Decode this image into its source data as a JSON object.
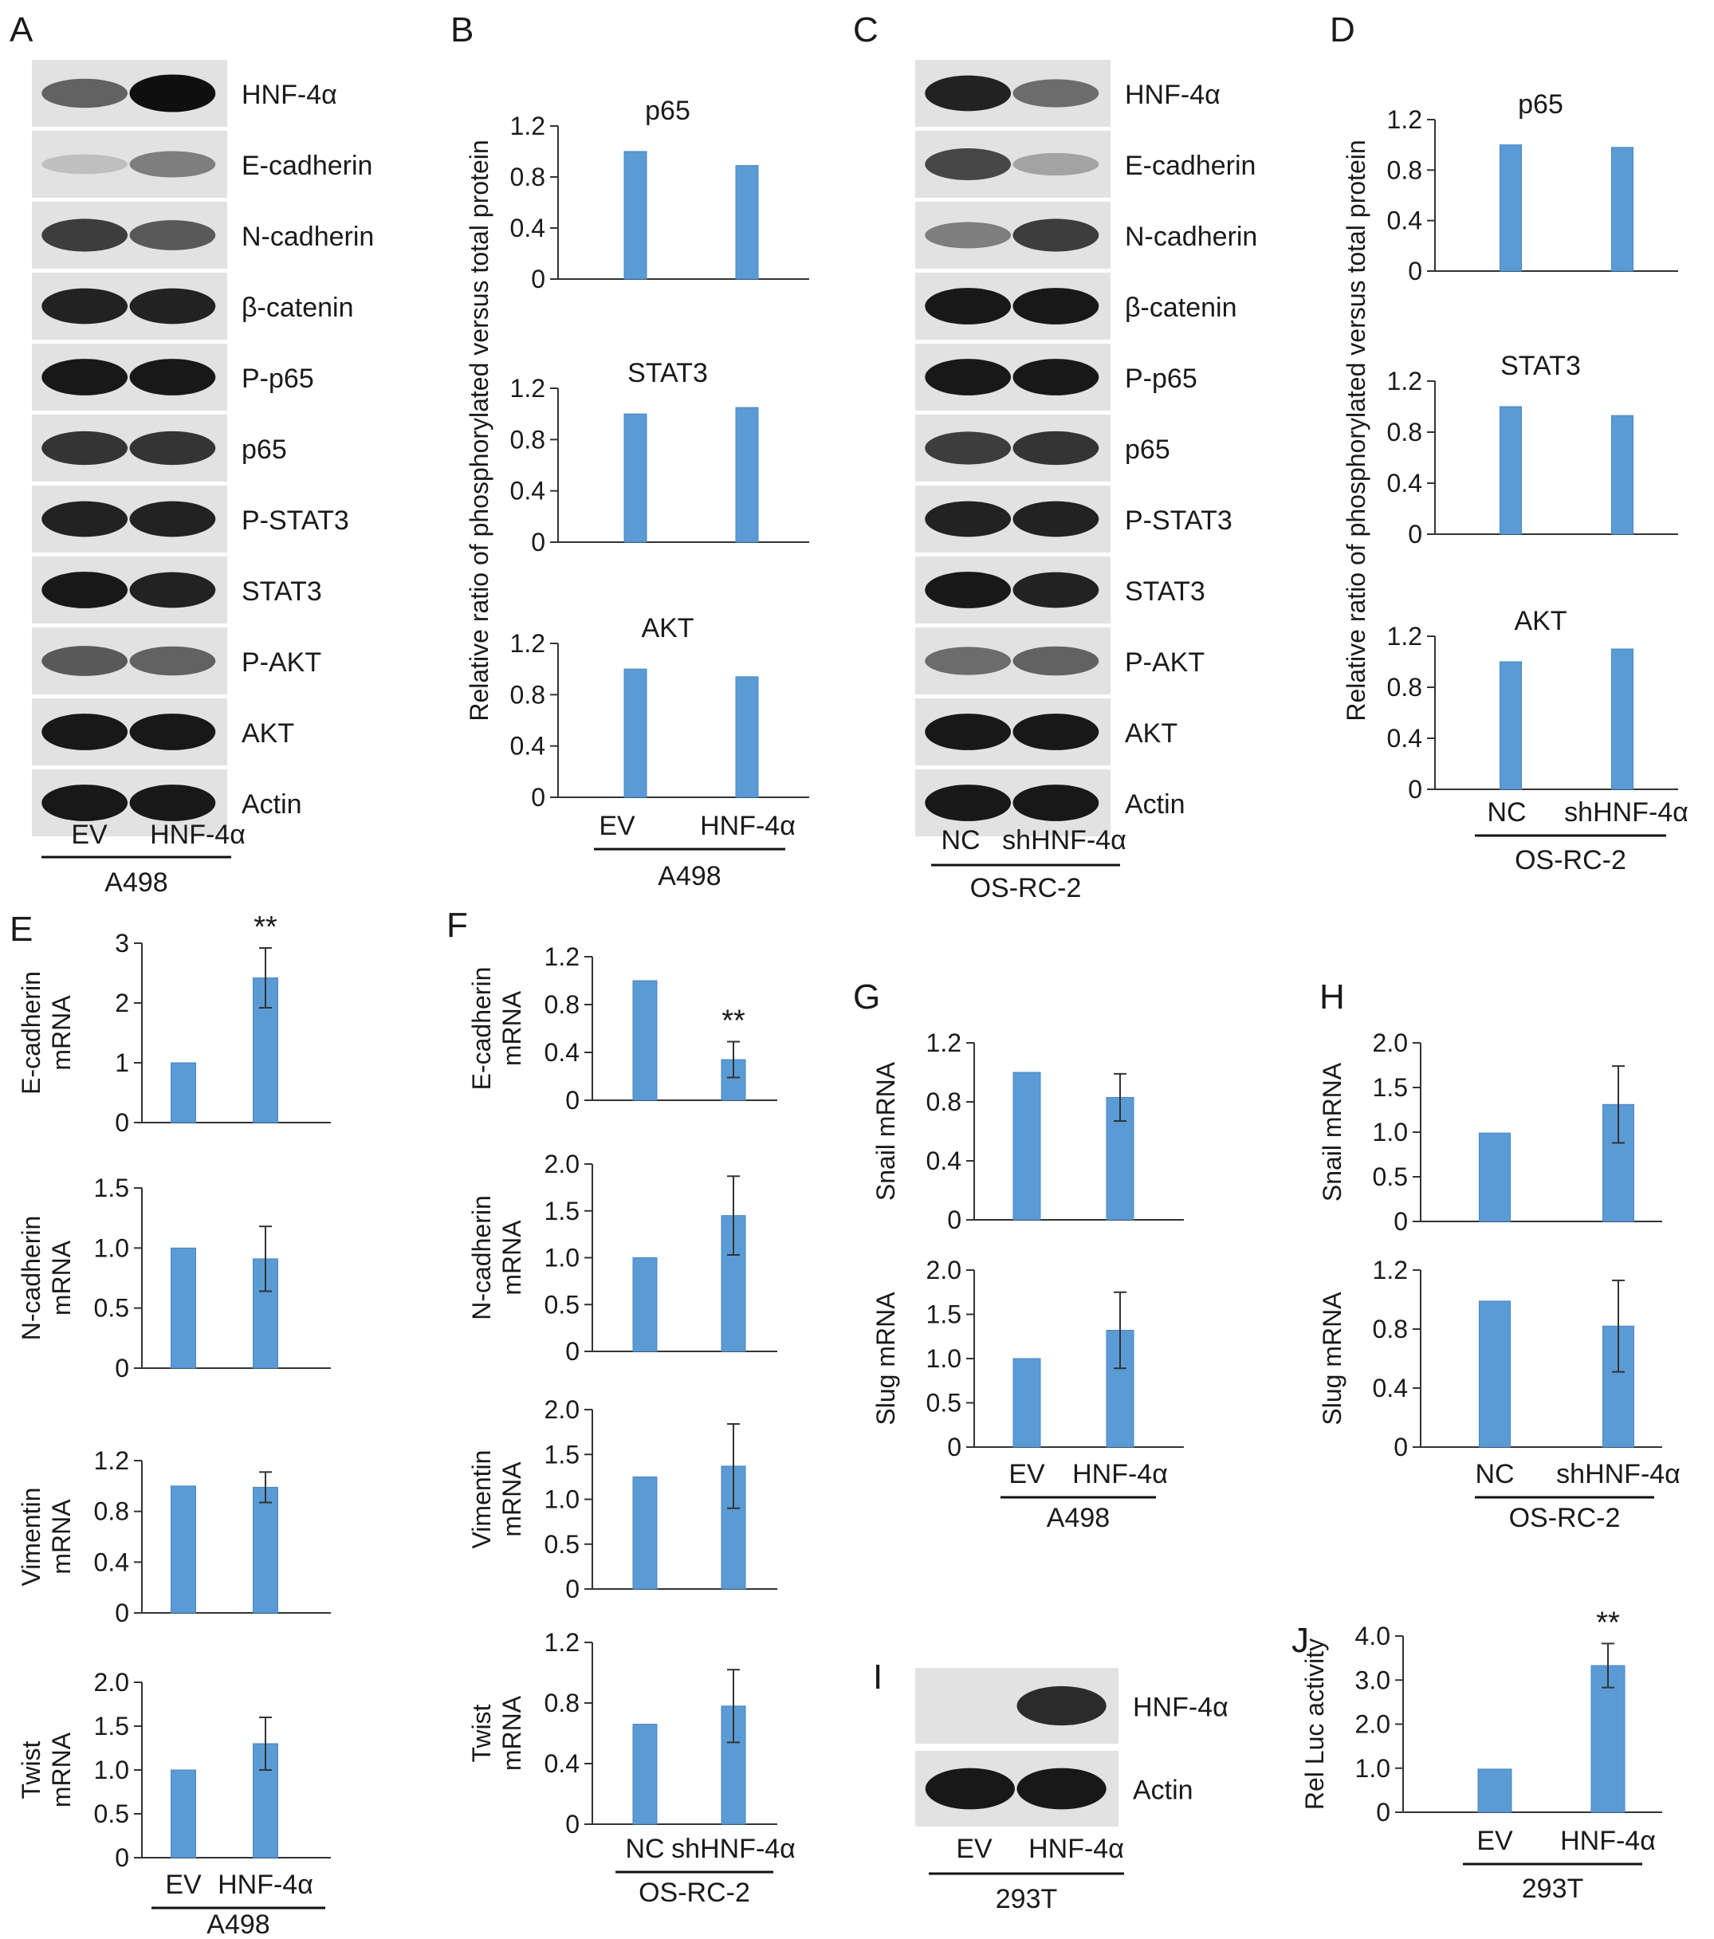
{
  "colors": {
    "bar": "#5b9bd5",
    "bar_edge": "#4a86bf",
    "axis": "#333333",
    "blot_bg": "#e2e2e2"
  },
  "panels": {
    "A": {
      "letter": "A",
      "bands": [
        "HNF-4α",
        "E-cadherin",
        "N-cadherin",
        "β-catenin",
        "P-p65",
        "p65",
        "P-STAT3",
        "STAT3",
        "P-AKT",
        "AKT",
        "Actin"
      ],
      "intensity": [
        [
          0.55,
          1.0
        ],
        [
          0.05,
          0.4
        ],
        [
          0.75,
          0.6
        ],
        [
          0.9,
          0.9
        ],
        [
          0.95,
          0.95
        ],
        [
          0.8,
          0.8
        ],
        [
          0.9,
          0.9
        ],
        [
          0.95,
          0.9
        ],
        [
          0.6,
          0.55
        ],
        [
          0.95,
          0.95
        ],
        [
          0.95,
          0.95
        ]
      ],
      "lanes": [
        "EV",
        "HNF-4α"
      ],
      "group": "A498"
    },
    "C": {
      "letter": "C",
      "bands": [
        "HNF-4α",
        "E-cadherin",
        "N-cadherin",
        "β-catenin",
        "P-p65",
        "p65",
        "P-STAT3",
        "STAT3",
        "P-AKT",
        "AKT",
        "Actin"
      ],
      "intensity": [
        [
          0.9,
          0.5
        ],
        [
          0.7,
          0.2
        ],
        [
          0.4,
          0.75
        ],
        [
          0.95,
          0.95
        ],
        [
          0.95,
          0.95
        ],
        [
          0.75,
          0.8
        ],
        [
          0.9,
          0.9
        ],
        [
          0.95,
          0.9
        ],
        [
          0.5,
          0.55
        ],
        [
          0.95,
          0.95
        ],
        [
          0.95,
          0.95
        ]
      ],
      "lanes": [
        "NC",
        "shHNF-4α"
      ],
      "group": "OS-RC-2"
    },
    "I": {
      "letter": "I",
      "bands": [
        "HNF-4α",
        "Actin"
      ],
      "intensity": [
        [
          0.0,
          0.85
        ],
        [
          0.95,
          0.95
        ]
      ],
      "lanes": [
        "EV",
        "HNF-4α"
      ],
      "group": "293T"
    },
    "B": {
      "letter": "B",
      "ylabel": "Relative ratio of phosphorylated versus total protein",
      "lanes": [
        "EV",
        "HNF-4α"
      ],
      "group": "A498"
    },
    "D": {
      "letter": "D",
      "ylabel": "Relative ratio of phosphorylated versus total protein",
      "lanes": [
        "NC",
        "shHNF-4α"
      ],
      "group": "OS-RC-2"
    },
    "E": {
      "letter": "E",
      "lanes": [
        "EV",
        "HNF-4α"
      ],
      "group": "A498"
    },
    "F": {
      "letter": "F",
      "lanes": [
        "NC",
        "shHNF-4α"
      ],
      "group": "OS-RC-2"
    },
    "G": {
      "letter": "G",
      "lanes": [
        "EV",
        "HNF-4α"
      ],
      "group": "A498"
    },
    "H": {
      "letter": "H",
      "lanes": [
        "NC",
        "shHNF-4α"
      ],
      "group": "OS-RC-2"
    },
    "J": {
      "letter": "J",
      "lanes": [
        "EV",
        "HNF-4α"
      ],
      "group": "293T"
    }
  },
  "chart_data": [
    {
      "id": "B1",
      "type": "bar",
      "title": "p65",
      "categories": [
        "EV",
        "HNF-4α"
      ],
      "values": [
        1.0,
        0.89
      ],
      "ylim": [
        0,
        1.2
      ],
      "ticks": [
        "0",
        "0.4",
        "0.8",
        "1.2"
      ]
    },
    {
      "id": "B2",
      "type": "bar",
      "title": "STAT3",
      "categories": [
        "EV",
        "HNF-4α"
      ],
      "values": [
        1.0,
        1.05
      ],
      "ylim": [
        0,
        1.2
      ],
      "ticks": [
        "0",
        "0.4",
        "0.8",
        "1.2"
      ]
    },
    {
      "id": "B3",
      "type": "bar",
      "title": "AKT",
      "categories": [
        "EV",
        "HNF-4α"
      ],
      "values": [
        1.0,
        0.94
      ],
      "ylim": [
        0,
        1.2
      ],
      "ticks": [
        "0",
        "0.4",
        "0.8",
        "1.2"
      ]
    },
    {
      "id": "D1",
      "type": "bar",
      "title": "p65",
      "categories": [
        "NC",
        "shHNF-4α"
      ],
      "values": [
        1.0,
        0.98
      ],
      "ylim": [
        0,
        1.2
      ],
      "ticks": [
        "0",
        "0.4",
        "0.8",
        "1.2"
      ]
    },
    {
      "id": "D2",
      "type": "bar",
      "title": "STAT3",
      "categories": [
        "NC",
        "shHNF-4α"
      ],
      "values": [
        1.0,
        0.93
      ],
      "ylim": [
        0,
        1.2
      ],
      "ticks": [
        "0",
        "0.4",
        "0.8",
        "1.2"
      ]
    },
    {
      "id": "D3",
      "type": "bar",
      "title": "AKT",
      "categories": [
        "NC",
        "shHNF-4α"
      ],
      "values": [
        1.0,
        1.1
      ],
      "ylim": [
        0,
        1.2
      ],
      "ticks": [
        "0",
        "0.4",
        "0.8",
        "1.2"
      ]
    },
    {
      "id": "E1",
      "type": "bar",
      "ylabel": [
        "E-cadherin",
        "mRNA"
      ],
      "categories": [
        "EV",
        "HNF-4α"
      ],
      "values": [
        1.0,
        2.42
      ],
      "errors": [
        0.01,
        0.5
      ],
      "ylim": [
        0,
        3
      ],
      "ticks": [
        "0",
        "1",
        "2",
        "3"
      ],
      "significance": [
        "",
        "**"
      ]
    },
    {
      "id": "E2",
      "type": "bar",
      "ylabel": [
        "N-cadherin",
        "mRNA"
      ],
      "categories": [
        "EV",
        "HNF-4α"
      ],
      "values": [
        1.0,
        0.91
      ],
      "errors": [
        0.005,
        0.27
      ],
      "ylim": [
        0,
        1.5
      ],
      "ticks": [
        "0",
        "0.5",
        "1.0",
        "1.5"
      ]
    },
    {
      "id": "E3",
      "type": "bar",
      "ylabel": [
        "Vimentin",
        "mRNA"
      ],
      "categories": [
        "EV",
        "HNF-4α"
      ],
      "values": [
        1.0,
        0.99
      ],
      "errors": [
        0.004,
        0.12
      ],
      "ylim": [
        0,
        1.2
      ],
      "ticks": [
        "0",
        "0.4",
        "0.8",
        "1.2"
      ]
    },
    {
      "id": "E4",
      "type": "bar",
      "ylabel": [
        "Twist",
        "mRNA"
      ],
      "categories": [
        "EV",
        "HNF-4α"
      ],
      "values": [
        1.0,
        1.3
      ],
      "errors": [
        0.005,
        0.3
      ],
      "ylim": [
        0,
        2.0
      ],
      "ticks": [
        "0",
        "0.5",
        "1.0",
        "1.5",
        "2.0"
      ]
    },
    {
      "id": "F1",
      "type": "bar",
      "ylabel": [
        "E-cadherin",
        "mRNA"
      ],
      "categories": [
        "NC",
        "shHNF-4α"
      ],
      "values": [
        1.0,
        0.34
      ],
      "errors": [
        0.004,
        0.15
      ],
      "ylim": [
        0,
        1.2
      ],
      "ticks": [
        "0",
        "0.4",
        "0.8",
        "1.2"
      ],
      "significance": [
        "",
        "**"
      ]
    },
    {
      "id": "F2",
      "type": "bar",
      "ylabel": [
        "N-cadherin",
        "mRNA"
      ],
      "categories": [
        "NC",
        "shHNF-4α"
      ],
      "values": [
        1.0,
        1.45
      ],
      "errors": [
        0.01,
        0.42
      ],
      "ylim": [
        0,
        2.0
      ],
      "ticks": [
        "0",
        "0.5",
        "1.0",
        "1.5",
        "2.0"
      ]
    },
    {
      "id": "F3",
      "type": "bar",
      "ylabel": [
        "Vimentin",
        "mRNA"
      ],
      "categories": [
        "NC",
        "shHNF-4α"
      ],
      "values": [
        1.25,
        1.37
      ],
      "errors": [
        0.01,
        0.47
      ],
      "ylim": [
        0,
        2.0
      ],
      "ticks": [
        "0",
        "0.5",
        "1.0",
        "1.5",
        "2.0"
      ]
    },
    {
      "id": "F4",
      "type": "bar",
      "ylabel": [
        "Twist",
        "mRNA"
      ],
      "categories": [
        "NC",
        "shHNF-4α"
      ],
      "values": [
        0.66,
        0.78
      ],
      "errors": [
        0.004,
        0.24
      ],
      "ylim": [
        0,
        1.2
      ],
      "ticks": [
        "0",
        "0.4",
        "0.8",
        "1.2"
      ]
    },
    {
      "id": "G1",
      "type": "bar",
      "ylabel": [
        "Snail mRNA"
      ],
      "categories": [
        "EV",
        "HNF-4α"
      ],
      "values": [
        1.0,
        0.83
      ],
      "errors": [
        0.004,
        0.16
      ],
      "ylim": [
        0,
        1.2
      ],
      "ticks": [
        "0",
        "0.4",
        "0.8",
        "1.2"
      ]
    },
    {
      "id": "G2",
      "type": "bar",
      "ylabel": [
        "Slug mRNA"
      ],
      "categories": [
        "EV",
        "HNF-4α"
      ],
      "values": [
        1.0,
        1.32
      ],
      "errors": [
        0.005,
        0.43
      ],
      "ylim": [
        0,
        2.0
      ],
      "ticks": [
        "0",
        "0.5",
        "1.0",
        "1.5",
        "2.0"
      ]
    },
    {
      "id": "H1",
      "type": "bar",
      "ylabel": [
        "Snail mRNA"
      ],
      "categories": [
        "NC",
        "shHNF-4α"
      ],
      "values": [
        0.99,
        1.31
      ],
      "errors": [
        0.01,
        0.43
      ],
      "ylim": [
        0,
        2.0
      ],
      "ticks": [
        "0",
        "0.5",
        "1.0",
        "1.5",
        "2.0"
      ]
    },
    {
      "id": "H2",
      "type": "bar",
      "ylabel": [
        "Slug mRNA"
      ],
      "categories": [
        "NC",
        "shHNF-4α"
      ],
      "values": [
        0.99,
        0.82
      ],
      "errors": [
        0.005,
        0.31
      ],
      "ylim": [
        0,
        1.2
      ],
      "ticks": [
        "0",
        "0.4",
        "0.8",
        "1.2"
      ]
    },
    {
      "id": "J1",
      "type": "bar",
      "ylabel": [
        "Rel Luc activity"
      ],
      "categories": [
        "EV",
        "HNF-4α"
      ],
      "values": [
        0.98,
        3.33
      ],
      "errors": [
        0.02,
        0.5
      ],
      "ylim": [
        0,
        4.0
      ],
      "ticks": [
        "0",
        "1.0",
        "2.0",
        "3.0",
        "4.0"
      ],
      "significance": [
        "",
        "**"
      ]
    }
  ]
}
